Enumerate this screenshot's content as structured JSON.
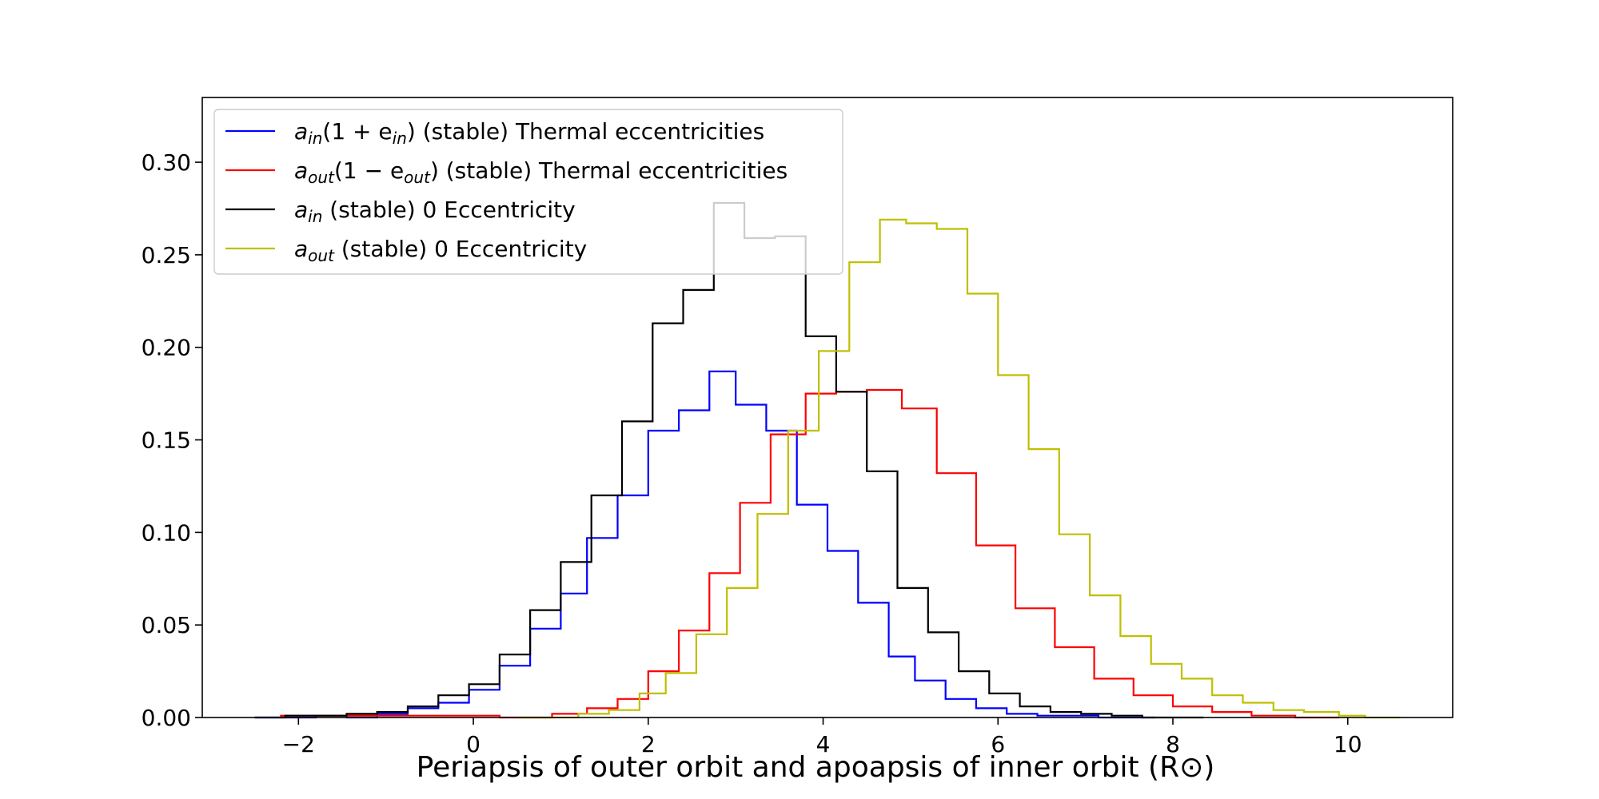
{
  "chart_data": {
    "type": "histogram",
    "title": "",
    "xlabel": "Periapsis of outer orbit and apoapsis of inner orbit (R⊙)",
    "ylabel": "",
    "xlim": [
      -3.1,
      11.2
    ],
    "ylim": [
      0,
      0.335
    ],
    "xticks": [
      -2,
      0,
      2,
      4,
      6,
      8,
      10
    ],
    "xtick_labels": [
      "−2",
      "0",
      "2",
      "4",
      "6",
      "8",
      "10"
    ],
    "yticks": [
      0,
      0.05,
      0.1,
      0.15,
      0.2,
      0.25,
      0.3
    ],
    "ytick_labels": [
      "0.00",
      "0.05",
      "0.10",
      "0.15",
      "0.20",
      "0.25",
      "0.30"
    ],
    "grid": false,
    "legend_position": "upper-left",
    "series": [
      {
        "name": "a_in(1 + e_in) (stable) Thermal eccentricities",
        "legend_parts": [
          [
            "a",
            false
          ],
          [
            "in",
            true
          ],
          [
            "(1 + e",
            false
          ],
          [
            "in",
            true
          ],
          [
            ") (stable) Thermal eccentricities",
            false
          ]
        ],
        "color": "#0000ff",
        "bin_edges": [
          -2.5,
          -2.15,
          -1.8,
          -1.45,
          -1.1,
          -0.75,
          -0.4,
          -0.05,
          0.3,
          0.65,
          1.0,
          1.3,
          1.65,
          2.0,
          2.35,
          2.7,
          3.0,
          3.35,
          3.7,
          4.05,
          4.4,
          4.75,
          5.05,
          5.4,
          5.75,
          6.1,
          6.45,
          6.8,
          7.15,
          7.5,
          7.8
        ],
        "values": [
          0.0,
          0.0,
          0.001,
          0.0,
          0.002,
          0.005,
          0.008,
          0.015,
          0.028,
          0.048,
          0.067,
          0.097,
          0.12,
          0.155,
          0.166,
          0.187,
          0.169,
          0.155,
          0.115,
          0.09,
          0.062,
          0.033,
          0.02,
          0.01,
          0.005,
          0.002,
          0.001,
          0.001,
          0.0,
          0.0
        ]
      },
      {
        "name": "a_out(1 − e_out) (stable) Thermal eccentricities",
        "legend_parts": [
          [
            "a",
            false
          ],
          [
            "out",
            true
          ],
          [
            "(1 − e",
            false
          ],
          [
            "out",
            true
          ],
          [
            ") (stable) Thermal eccentricities",
            false
          ]
        ],
        "color": "#ff0000",
        "bin_edges": [
          -2.2,
          -1.5,
          -0.9,
          -0.3,
          0.3,
          0.9,
          1.3,
          1.65,
          2.0,
          2.35,
          2.7,
          3.05,
          3.4,
          3.8,
          4.15,
          4.5,
          4.9,
          5.3,
          5.75,
          6.2,
          6.65,
          7.1,
          7.55,
          8.0,
          8.45,
          8.9,
          9.4,
          9.9
        ],
        "values": [
          0.001,
          0.001,
          0.001,
          0.001,
          0.0,
          0.002,
          0.005,
          0.01,
          0.025,
          0.047,
          0.078,
          0.116,
          0.153,
          0.175,
          0.176,
          0.177,
          0.167,
          0.132,
          0.093,
          0.059,
          0.038,
          0.021,
          0.012,
          0.006,
          0.003,
          0.001,
          0.0
        ]
      },
      {
        "name": "a_in (stable) 0 Eccentricity",
        "legend_parts": [
          [
            "a",
            false
          ],
          [
            "in",
            true
          ],
          [
            " (stable) 0 Eccentricity",
            false
          ]
        ],
        "color": "#000000",
        "bin_edges": [
          -2.5,
          -2.15,
          -1.8,
          -1.45,
          -1.1,
          -0.75,
          -0.4,
          -0.05,
          0.3,
          0.65,
          1.0,
          1.35,
          1.7,
          2.05,
          2.4,
          2.75,
          3.1,
          3.45,
          3.8,
          4.15,
          4.5,
          4.85,
          5.2,
          5.55,
          5.9,
          6.25,
          6.6,
          6.95,
          7.3,
          7.65,
          8.0,
          8.35
        ],
        "values": [
          0.0,
          0.001,
          0.001,
          0.002,
          0.003,
          0.006,
          0.012,
          0.018,
          0.034,
          0.058,
          0.084,
          0.12,
          0.16,
          0.213,
          0.231,
          0.278,
          0.259,
          0.26,
          0.206,
          0.176,
          0.133,
          0.07,
          0.046,
          0.025,
          0.013,
          0.006,
          0.003,
          0.002,
          0.001,
          0.0,
          0.0
        ]
      },
      {
        "name": "a_out (stable) 0 Eccentricity",
        "legend_parts": [
          [
            "a",
            false
          ],
          [
            "out",
            true
          ],
          [
            " (stable) 0 Eccentricity",
            false
          ]
        ],
        "color": "#bfbf00",
        "bin_edges": [
          0.5,
          0.85,
          1.2,
          1.55,
          1.9,
          2.2,
          2.55,
          2.9,
          3.25,
          3.6,
          3.95,
          4.3,
          4.65,
          4.95,
          5.3,
          5.65,
          6.0,
          6.35,
          6.7,
          7.05,
          7.4,
          7.75,
          8.1,
          8.45,
          8.8,
          9.15,
          9.5,
          9.9,
          10.2,
          10.6
        ],
        "values": [
          0.0,
          0.0,
          0.002,
          0.004,
          0.013,
          0.024,
          0.045,
          0.07,
          0.11,
          0.155,
          0.198,
          0.246,
          0.269,
          0.267,
          0.264,
          0.229,
          0.185,
          0.145,
          0.099,
          0.066,
          0.044,
          0.029,
          0.021,
          0.012,
          0.008,
          0.004,
          0.003,
          0.001,
          0.0
        ]
      }
    ]
  }
}
